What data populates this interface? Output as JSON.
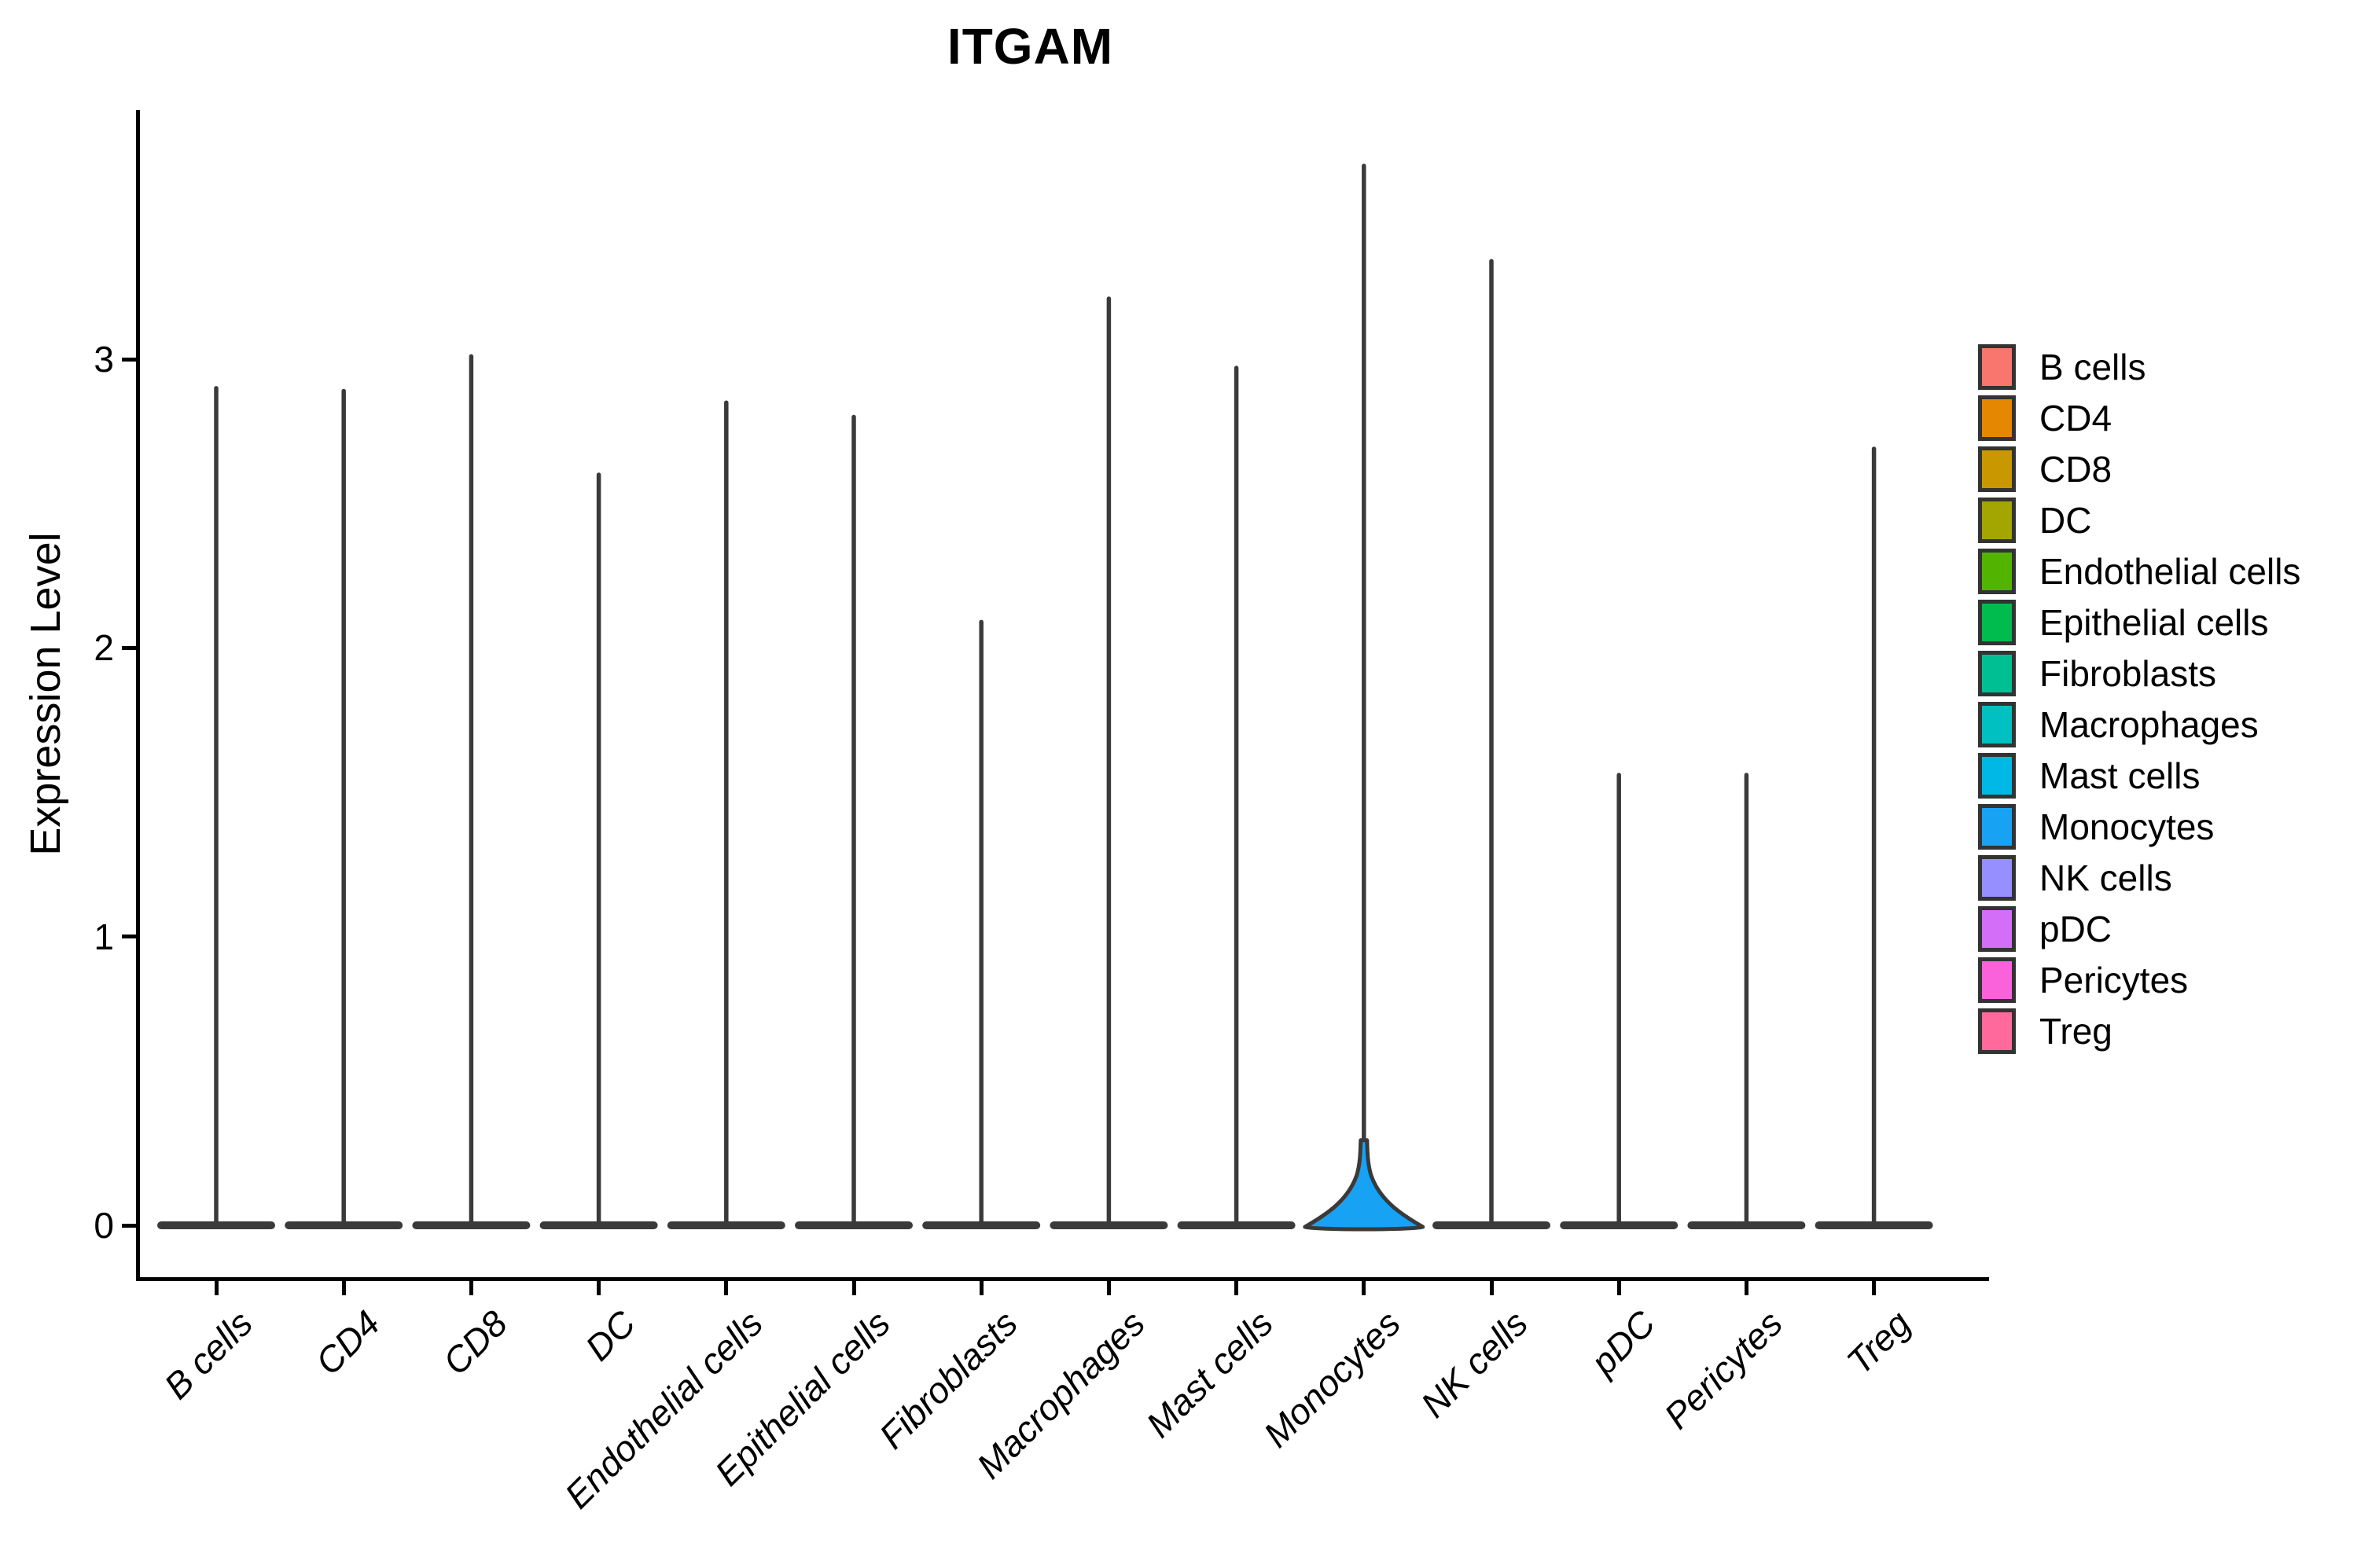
{
  "title": "ITGAM",
  "y_axis": {
    "label": "Expression Level",
    "tick_labels": [
      "0",
      "1",
      "2",
      "3"
    ],
    "tick_values": [
      0,
      1,
      2,
      3
    ]
  },
  "colors": {
    "outline": "#3A3A3A",
    "axis": "#000000",
    "background": "#FFFFFF"
  },
  "legend": {
    "entries": [
      {
        "label": "B cells",
        "color": "#F8766D"
      },
      {
        "label": "CD4",
        "color": "#E58700"
      },
      {
        "label": "CD8",
        "color": "#C99800"
      },
      {
        "label": "DC",
        "color": "#A3A500"
      },
      {
        "label": "Endothelial cells",
        "color": "#53B400"
      },
      {
        "label": "Epithelial cells",
        "color": "#00BB4E"
      },
      {
        "label": "Fibroblasts",
        "color": "#00BF92"
      },
      {
        "label": "Macrophages",
        "color": "#00C0C2"
      },
      {
        "label": "Mast cells",
        "color": "#00B8E5"
      },
      {
        "label": "Monocytes",
        "color": "#18A2F4"
      },
      {
        "label": "NK cells",
        "color": "#968FFF"
      },
      {
        "label": "pDC",
        "color": "#D36EF8"
      },
      {
        "label": "Pericytes",
        "color": "#FA62DB"
      },
      {
        "label": "Treg",
        "color": "#FF699C"
      }
    ]
  },
  "chart_data": {
    "type": "violin",
    "title": "ITGAM",
    "xlabel": "",
    "ylabel": "Expression Level",
    "ylim": [
      0,
      3.85
    ],
    "y_ticks": [
      0,
      1,
      2,
      3
    ],
    "grid": false,
    "legend_position": "right",
    "categories": [
      "B cells",
      "CD4",
      "CD8",
      "DC",
      "Endothelial cells",
      "Epithelial cells",
      "Fibroblasts",
      "Macrophages",
      "Mast cells",
      "Monocytes",
      "NK cells",
      "pDC",
      "Pericytes",
      "Treg"
    ],
    "series": [
      {
        "name": "B cells",
        "color": "#F8766D",
        "max_expression": 2.9,
        "zero_bulge": 0.03
      },
      {
        "name": "CD4",
        "color": "#E58700",
        "max_expression": 2.89,
        "zero_bulge": 0.03
      },
      {
        "name": "CD8",
        "color": "#C99800",
        "max_expression": 3.01,
        "zero_bulge": 0.03
      },
      {
        "name": "DC",
        "color": "#A3A500",
        "max_expression": 2.6,
        "zero_bulge": 0.03
      },
      {
        "name": "Endothelial cells",
        "color": "#53B400",
        "max_expression": 2.85,
        "zero_bulge": 0.03
      },
      {
        "name": "Epithelial cells",
        "color": "#00BB4E",
        "max_expression": 2.8,
        "zero_bulge": 0.03
      },
      {
        "name": "Fibroblasts",
        "color": "#00BF92",
        "max_expression": 2.09,
        "zero_bulge": 0.03
      },
      {
        "name": "Macrophages",
        "color": "#00C0C2",
        "max_expression": 3.21,
        "zero_bulge": 0.03
      },
      {
        "name": "Mast cells",
        "color": "#00B8E5",
        "max_expression": 2.97,
        "zero_bulge": 0.03
      },
      {
        "name": "Monocytes",
        "color": "#18A2F4",
        "max_expression": 3.67,
        "zero_bulge": 0.3
      },
      {
        "name": "NK cells",
        "color": "#968FFF",
        "max_expression": 3.34,
        "zero_bulge": 0.03
      },
      {
        "name": "pDC",
        "color": "#D36EF8",
        "max_expression": 1.56,
        "zero_bulge": 0.03
      },
      {
        "name": "Pericytes",
        "color": "#FA62DB",
        "max_expression": 1.56,
        "zero_bulge": 0.03
      },
      {
        "name": "Treg",
        "color": "#FF699C",
        "max_expression": 2.69,
        "zero_bulge": 0.03
      }
    ],
    "notes": "Seurat-style violin plot; expression mass concentrated at 0 for all cell types (flat dark violins at baseline with thin spikes up to the max value); only Monocytes shows a visible blue density bulge near 0 reaching ~0.3."
  }
}
